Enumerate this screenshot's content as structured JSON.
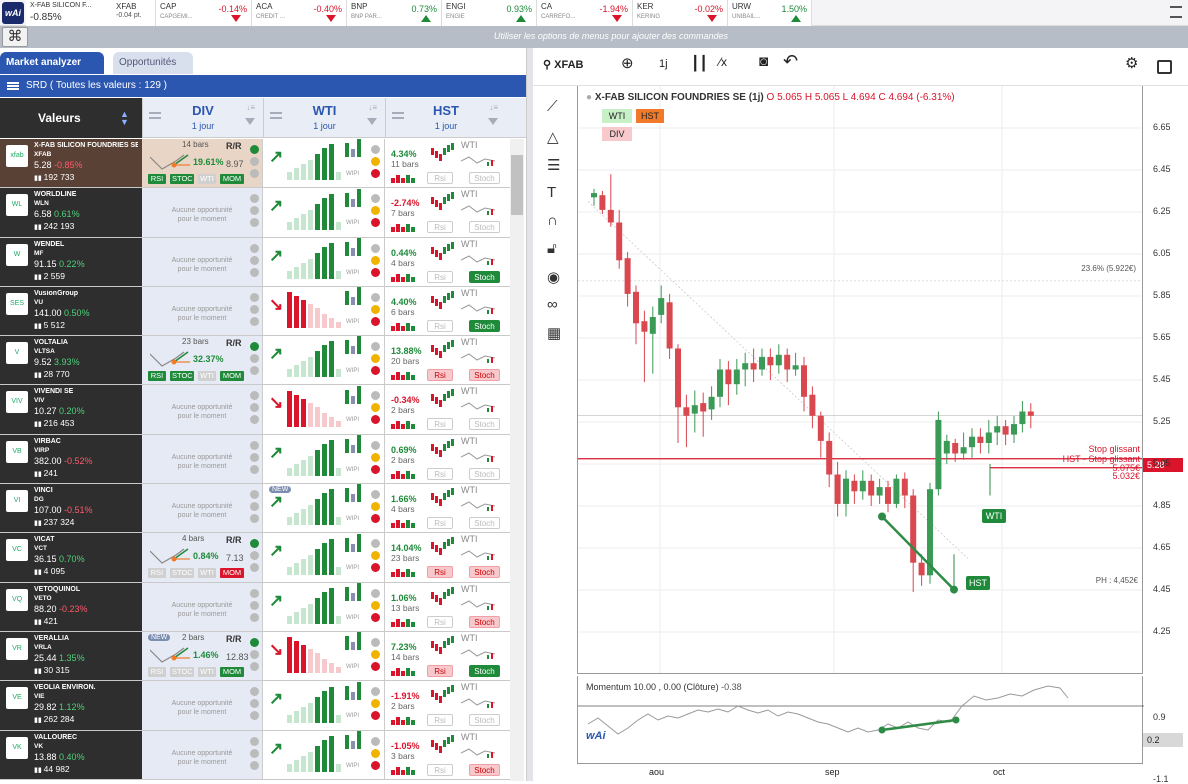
{
  "ticker": [
    {
      "code": "X-FAB SILICON F...",
      "sub": "",
      "pct": "-0.85%",
      "dir": "dn",
      "x": 26,
      "w": 108,
      "big": true
    },
    {
      "code": "XFAB",
      "sub": "-0.04 pt.",
      "pct": "",
      "dir": "dn",
      "x": 112,
      "w": 44,
      "flat": true
    },
    {
      "code": "CAP",
      "sub": "CAPGEMI...",
      "pct": "-0.14%",
      "dir": "dn",
      "x": 156,
      "w": 96
    },
    {
      "code": "ACA",
      "sub": "CREDIT ...",
      "pct": "-0.40%",
      "dir": "dn",
      "x": 252,
      "w": 95
    },
    {
      "code": "BNP",
      "sub": "BNP PAR...",
      "pct": "0.73%",
      "dir": "up",
      "x": 347,
      "w": 95
    },
    {
      "code": "ENGI",
      "sub": "ENGIE",
      "pct": "0.93%",
      "dir": "up",
      "x": 442,
      "w": 95
    },
    {
      "code": "CA",
      "sub": "CARREFO...",
      "pct": "-1.94%",
      "dir": "dn",
      "x": 537,
      "w": 96
    },
    {
      "code": "KER",
      "sub": "KERING",
      "pct": "-0.02%",
      "dir": "dn",
      "x": 633,
      "w": 95
    },
    {
      "code": "URW",
      "sub": "UNIBAIL...",
      "pct": "1.50%",
      "dir": "up",
      "x": 728,
      "w": 84
    }
  ],
  "bar2": {
    "command_hint": "Utiliser les options de menus pour ajouter des commandes",
    "logo": "wAi",
    "kb": "⌘"
  },
  "tabs": {
    "market": "Market analyzer",
    "opps": "Opportunités"
  },
  "srd": "SRD ( Toutes les valeurs : 129 )",
  "head": {
    "valeurs": "Valeurs",
    "div": "DIV",
    "wti": "WTI",
    "hst": "HST",
    "period": "1 jour"
  },
  "labels": {
    "none1": "Aucune opportunité",
    "none2": "pour le moment",
    "wipi": "WIPI",
    "rsi": "RSI",
    "stoc": "STOC",
    "wti_b": "WTI",
    "mom": "MOM",
    "rsi2": "Rsi",
    "stoch": "Stoch",
    "new": "NEW",
    "rr": "R/R",
    "wti_lbl": "WTI"
  },
  "rows": [
    {
      "name": "X-FAB SILICON FOUNDRIES SE",
      "sym": "XFAB",
      "price": "5.28",
      "chg": "-0.85%",
      "dir": "dn",
      "vol": "192 733",
      "logo": "xfab",
      "sel": true,
      "div": {
        "bars": "14 bars",
        "pct": "19.61%",
        "rr": "8.97",
        "b": [
          1,
          1,
          0,
          1
        ]
      },
      "wti": "up",
      "hst": {
        "pct": "4.34%",
        "bars": "11 bars",
        "dir": "up",
        "rsi": false,
        "st": ""
      }
    },
    {
      "name": "WORLDLINE",
      "sym": "WLN",
      "price": "6.58",
      "chg": "0.61%",
      "dir": "up",
      "vol": "242 193",
      "logo": "WL",
      "wti": "up",
      "hst": {
        "pct": "-2.74%",
        "bars": "7 bars",
        "dir": "dn",
        "rsi": false,
        "st": ""
      }
    },
    {
      "name": "WENDEL",
      "sym": "MF",
      "price": "91.15",
      "chg": "0.22%",
      "dir": "up",
      "vol": "2 559",
      "logo": "W",
      "wti": "up",
      "hst": {
        "pct": "0.44%",
        "bars": "4 bars",
        "dir": "up",
        "rsi": false,
        "st": "g"
      }
    },
    {
      "name": "VusionGroup",
      "sym": "VU",
      "price": "141.00",
      "chg": "0.50%",
      "dir": "up",
      "vol": "5 512",
      "logo": "SES",
      "wti": "dn",
      "hst": {
        "pct": "4.40%",
        "bars": "6 bars",
        "dir": "up",
        "rsi": false,
        "st": "g"
      }
    },
    {
      "name": "VOLTALIA",
      "sym": "VLTSA",
      "price": "9.52",
      "chg": "3.93%",
      "dir": "up",
      "vol": "28 770",
      "logo": "V",
      "div": {
        "bars": "23 bars",
        "pct": "32.37%",
        "rr": "",
        "b": [
          1,
          1,
          0,
          1
        ]
      },
      "wti": "up",
      "hst": {
        "pct": "13.88%",
        "bars": "20 bars",
        "dir": "up",
        "rsi": true,
        "st": "r"
      }
    },
    {
      "name": "VIVENDI SE",
      "sym": "VIV",
      "price": "10.27",
      "chg": "0.20%",
      "dir": "up",
      "vol": "216 453",
      "logo": "VIV",
      "wti": "dn",
      "hst": {
        "pct": "-0.34%",
        "bars": "2 bars",
        "dir": "dn",
        "rsi": false,
        "st": ""
      }
    },
    {
      "name": "VIRBAC",
      "sym": "VIRP",
      "price": "382.00",
      "chg": "-0.52%",
      "dir": "dn",
      "vol": "241",
      "logo": "VB",
      "wti": "up",
      "hst": {
        "pct": "0.69%",
        "bars": "2 bars",
        "dir": "up",
        "rsi": false,
        "st": ""
      }
    },
    {
      "name": "VINCI",
      "sym": "DG",
      "price": "107.00",
      "chg": "-0.51%",
      "dir": "dn",
      "vol": "237 324",
      "logo": "VI",
      "wti": "up",
      "wnew": true,
      "hst": {
        "pct": "1.66%",
        "bars": "4 bars",
        "dir": "up",
        "rsi": false,
        "st": ""
      }
    },
    {
      "name": "VICAT",
      "sym": "VCT",
      "price": "36.15",
      "chg": "0.70%",
      "dir": "up",
      "vol": "4 095",
      "logo": "VC",
      "div": {
        "bars": "4 bars",
        "pct": "0.84%",
        "rr": "7.13",
        "b": [
          0,
          0,
          0,
          2
        ]
      },
      "wti": "up",
      "hst": {
        "pct": "14.04%",
        "bars": "23 bars",
        "dir": "up",
        "rsi": true,
        "st": "r"
      }
    },
    {
      "name": "VETOQUINOL",
      "sym": "VETO",
      "price": "88.20",
      "chg": "-0.23%",
      "dir": "dn",
      "vol": "421",
      "logo": "VQ",
      "wti": "up",
      "hst": {
        "pct": "1.06%",
        "bars": "13 bars",
        "dir": "up",
        "rsi": false,
        "st": "r"
      }
    },
    {
      "name": "VERALLIA",
      "sym": "VRLA",
      "price": "25.44",
      "chg": "1.35%",
      "dir": "up",
      "vol": "30 315",
      "logo": "VR",
      "div": {
        "bars": "2 bars",
        "pct": "1.46%",
        "rr": "12.83",
        "b": [
          0,
          0,
          0,
          1
        ],
        "new": true
      },
      "wti": "dn",
      "hst": {
        "pct": "7.23%",
        "bars": "14 bars",
        "dir": "up",
        "rsi": true,
        "st": "g"
      }
    },
    {
      "name": "VEOLIA ENVIRON.",
      "sym": "VIE",
      "price": "29.82",
      "chg": "1.12%",
      "dir": "up",
      "vol": "262 284",
      "logo": "VE",
      "wti": "up",
      "hst": {
        "pct": "-1.91%",
        "bars": "2 bars",
        "dir": "dn",
        "rsi": false,
        "st": ""
      }
    },
    {
      "name": "VALLOUREC",
      "sym": "VK",
      "price": "13.88",
      "chg": "0.40%",
      "dir": "up",
      "vol": "44 982",
      "logo": "VK",
      "wti": "up",
      "hst": {
        "pct": "-1.05%",
        "bars": "3 bars",
        "dir": "dn",
        "rsi": false,
        "st": "r"
      }
    }
  ],
  "chart": {
    "symbol": "XFAB",
    "title": "X-FAB SILICON FOUNDRIES SE (1j)",
    "ohlc": "O 5.065  H 5.065  L 4.694  C 4.694 (-6.31%)",
    "tf": "1j",
    "badges": {
      "wti": "WTI",
      "hst": "HST",
      "div": "DIV"
    },
    "price_tag": "5.28",
    "fib": "23.6% (5.922€)",
    "ph": "PH : 4,452€",
    "stop1": "Stop glissant",
    "stop2": "HST - Stop glissant",
    "stopv1": "5.075€",
    "stopv2": "5.032€",
    "lbl_wti": "WTI",
    "lbl_hst": "HST",
    "momentum": "Momentum 10.00 , 0.00 (Clôture)",
    "mom_val": "-0.38",
    "mom_tag": "0.2",
    "mom_ticks": [
      "0.9",
      "-1.1"
    ],
    "yticks": [
      "6.65",
      "6.45",
      "6.25",
      "6.05",
      "5.85",
      "5.65",
      "5.45",
      "5.25",
      "5.05",
      "4.85",
      "4.65",
      "4.45",
      "4.25"
    ],
    "xticks": [
      "aou",
      "sep",
      "oct"
    ],
    "logo": "wAi"
  }
}
